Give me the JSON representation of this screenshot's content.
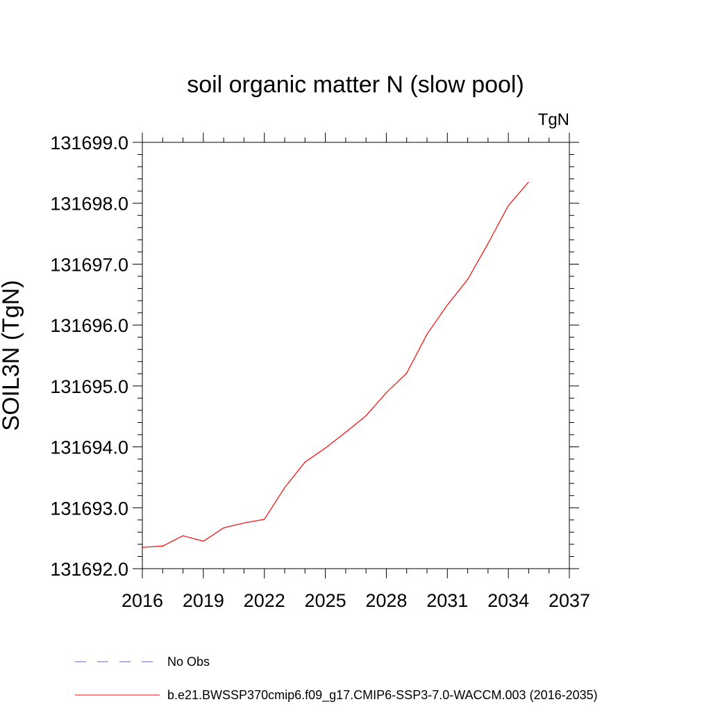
{
  "chart_data": {
    "type": "line",
    "title": "soil organic matter N (slow pool)",
    "units_label": "TgN",
    "xlabel": "",
    "ylabel": "SOIL3N  (TgN)",
    "xlim": [
      2016,
      2037
    ],
    "ylim": [
      131692.0,
      131699.0
    ],
    "x_ticks": [
      "2016",
      "2019",
      "2022",
      "2025",
      "2028",
      "2031",
      "2034",
      "2037"
    ],
    "y_ticks": [
      "131692.0",
      "131693.0",
      "131694.0",
      "131695.0",
      "131696.0",
      "131697.0",
      "131698.0",
      "131699.0"
    ],
    "series": [
      {
        "name": "No Obs",
        "color": "#6b5bd6",
        "dash": "dashed",
        "x": [],
        "values": []
      },
      {
        "name": "b.e21.BWSSP370cmip6.f09_g17.CMIP6-SSP3-7.0-WACCM.003 (2016-2035)",
        "color": "#ff0000",
        "dash": "solid",
        "x": [
          2016,
          2017,
          2018,
          2019,
          2020,
          2021,
          2022,
          2023,
          2024,
          2025,
          2026,
          2027,
          2028,
          2029,
          2030,
          2031,
          2032,
          2033,
          2034,
          2035
        ],
        "values": [
          131692.35,
          131692.37,
          131692.54,
          131692.45,
          131692.67,
          131692.75,
          131692.81,
          131693.33,
          131693.75,
          131693.98,
          131694.24,
          131694.51,
          131694.89,
          131695.21,
          131695.85,
          131696.33,
          131696.75,
          131697.34,
          131697.96,
          131698.35
        ]
      }
    ]
  }
}
